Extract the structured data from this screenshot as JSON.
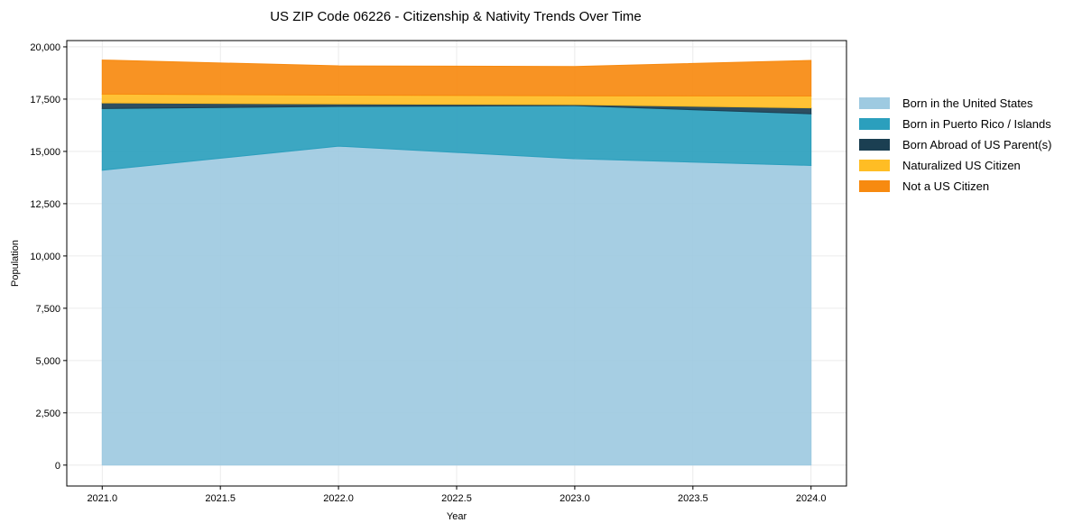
{
  "chart_data": {
    "type": "area",
    "stacked": true,
    "title": "US ZIP Code 06226 - Citizenship & Nativity Trends Over Time",
    "xlabel": "Year",
    "ylabel": "Population",
    "x": [
      2021,
      2022,
      2023,
      2024
    ],
    "xlim": [
      2020.85,
      2024.15
    ],
    "ylim": [
      -1000,
      20300
    ],
    "xticks": [
      2021.0,
      2021.5,
      2022.0,
      2022.5,
      2023.0,
      2023.5,
      2024.0
    ],
    "xtick_labels": [
      "2021.0",
      "2021.5",
      "2022.0",
      "2022.5",
      "2023.0",
      "2023.5",
      "2024.0"
    ],
    "yticks": [
      0,
      2500,
      5000,
      7500,
      10000,
      12500,
      15000,
      17500,
      20000
    ],
    "ytick_labels": [
      "0",
      "2,500",
      "5,000",
      "7,500",
      "10,000",
      "12,500",
      "15,000",
      "17,500",
      "20,000"
    ],
    "grid": true,
    "legend_position": "right",
    "series": [
      {
        "name": "Born in the United States",
        "values": [
          14100,
          15250,
          14650,
          14330
        ],
        "color": "#9ecae1"
      },
      {
        "name": "Born in Puerto Rico / Islands",
        "values": [
          2950,
          1900,
          2540,
          2470
        ],
        "color": "#2b9fbd"
      },
      {
        "name": "Born Abroad of US Parent(s)",
        "values": [
          270,
          120,
          50,
          280
        ],
        "color": "#1b3f52"
      },
      {
        "name": "Naturalized US Citizen",
        "values": [
          420,
          420,
          420,
          570
        ],
        "color": "#ffbd24"
      },
      {
        "name": "Not a US Citizen",
        "values": [
          1630,
          1400,
          1400,
          1700
        ],
        "color": "#f78a10"
      }
    ]
  }
}
